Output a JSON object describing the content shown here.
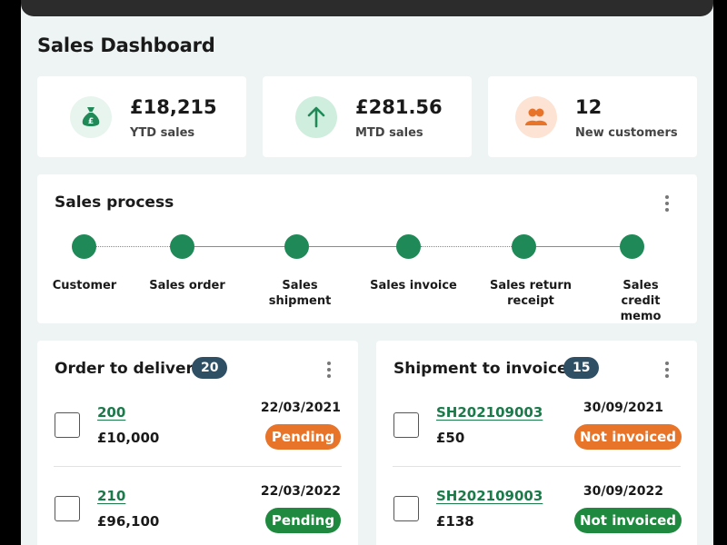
{
  "page": {
    "title": "Sales Dashboard"
  },
  "kpis": [
    {
      "value": "£18,215",
      "label": "YTD sales",
      "icon": "money-bag-icon",
      "icon_bg": "#e8f5ee",
      "icon_color": "#1f8a57"
    },
    {
      "value": "£281.56",
      "label": "MTD sales",
      "icon": "arrow-up-icon",
      "icon_bg": "#cfeedd",
      "icon_color": "#1f8a57"
    },
    {
      "value": "12",
      "label": "New customers",
      "icon": "users-icon",
      "icon_bg": "#fde3d3",
      "icon_color": "#e8742a"
    }
  ],
  "process": {
    "title": "Sales process",
    "steps": [
      {
        "label": "Customer"
      },
      {
        "label": "Sales order"
      },
      {
        "label": "Sales shipment"
      },
      {
        "label": "Sales invoice"
      },
      {
        "label": "Sales return receipt"
      },
      {
        "label": "Sales credit memo"
      }
    ]
  },
  "order_to_deliver": {
    "title": "Order to deliver",
    "count": "20",
    "rows": [
      {
        "id": "200",
        "amount": "£10,000",
        "date": "22/03/2021",
        "status": "Pending",
        "status_color": "#e8742a"
      },
      {
        "id": "210",
        "amount": "£96,100",
        "date": "22/03/2022",
        "status": "Pending",
        "status_color": "#1f8a3f"
      }
    ]
  },
  "shipment_to_invoice": {
    "title": "Shipment to invoice",
    "count": "15",
    "rows": [
      {
        "id": "SH202109003",
        "amount": "£50",
        "date": "30/09/2021",
        "status": "Not invoiced",
        "status_color": "#e8742a"
      },
      {
        "id": "SH202109003",
        "amount": "£138",
        "date": "30/09/2022",
        "status": "Not invoiced",
        "status_color": "#1f8a3f"
      }
    ]
  },
  "colors": {
    "accent": "#1f8a57",
    "badge": "#2f4f64",
    "orange": "#e8742a",
    "green": "#1f8a3f"
  }
}
